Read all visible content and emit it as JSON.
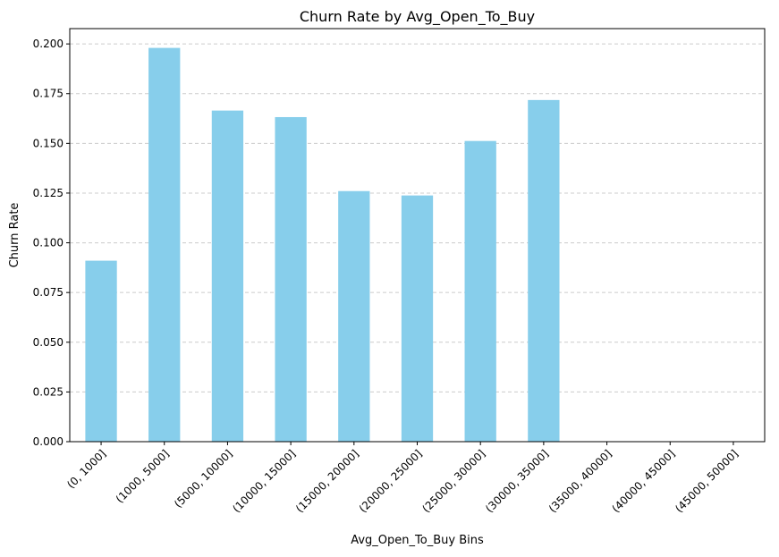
{
  "chart_data": {
    "type": "bar",
    "title": "Churn Rate by Avg_Open_To_Buy",
    "xlabel": "Avg_Open_To_Buy Bins",
    "ylabel": "Churn Rate",
    "categories": [
      "(0, 1000]",
      "(1000, 5000]",
      "(5000, 10000]",
      "(10000, 15000]",
      "(15000, 20000]",
      "(20000, 25000]",
      "(25000, 30000]",
      "(30000, 35000]",
      "(35000, 40000]",
      "(40000, 45000]",
      "(45000, 50000]"
    ],
    "values": [
      0.091,
      0.198,
      0.1665,
      0.1632,
      0.126,
      0.1238,
      0.1512,
      0.1718,
      0,
      0,
      0
    ],
    "ylim": [
      0,
      0.2077
    ],
    "yticks": [
      "0.000",
      "0.025",
      "0.050",
      "0.075",
      "0.100",
      "0.125",
      "0.150",
      "0.175",
      "0.200"
    ],
    "grid": "y-dashed",
    "bar_color": "#87ceeb",
    "grid_color": "#cccccc",
    "axis_color": "#000000"
  }
}
